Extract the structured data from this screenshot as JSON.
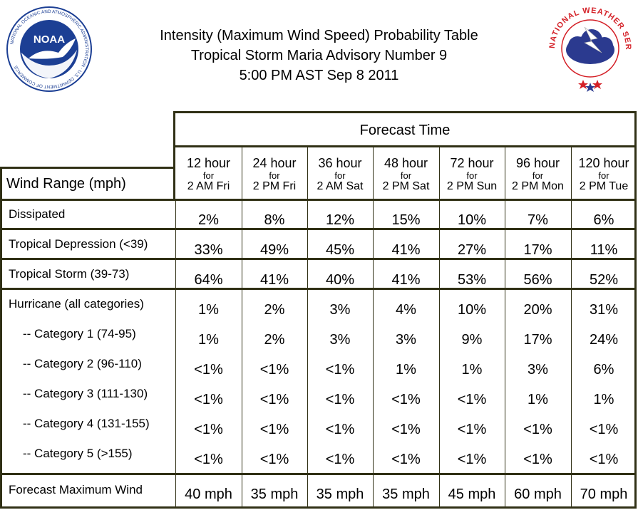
{
  "title_lines": [
    "Intensity (Maximum Wind Speed) Probability Table",
    "Tropical Storm Maria Advisory Number 9",
    "5:00 PM AST Sep 8 2011"
  ],
  "logos": {
    "noaa_text": "NOAA",
    "noaa_ring": "NATIONAL OCEANIC AND ATMOSPHERIC ADMINISTRATION · U.S. DEPARTMENT OF COMMERCE",
    "nws_ring": "NATIONAL WEATHER SERVICE"
  },
  "header": {
    "forecast_time": "Forecast Time",
    "wind_range": "Wind Range (mph)",
    "columns": [
      {
        "hour": "12 hour",
        "for": "for",
        "time": "2 AM Fri"
      },
      {
        "hour": "24 hour",
        "for": "for",
        "time": "2 PM Fri"
      },
      {
        "hour": "36 hour",
        "for": "for",
        "time": "2 AM Sat"
      },
      {
        "hour": "48 hour",
        "for": "for",
        "time": "2 PM Sat"
      },
      {
        "hour": "72 hour",
        "for": "for",
        "time": "2 PM Sun"
      },
      {
        "hour": "96 hour",
        "for": "for",
        "time": "2 PM Mon"
      },
      {
        "hour": "120 hour",
        "for": "for",
        "time": "2 PM Tue"
      }
    ]
  },
  "rows": [
    {
      "label": "Dissipated",
      "values": [
        "2%",
        "8%",
        "12%",
        "15%",
        "10%",
        "7%",
        "6%"
      ]
    },
    {
      "label": "Tropical Depression (<39)",
      "values": [
        "33%",
        "49%",
        "45%",
        "41%",
        "27%",
        "17%",
        "11%"
      ]
    },
    {
      "label": "Tropical Storm (39-73)",
      "values": [
        "64%",
        "41%",
        "40%",
        "41%",
        "53%",
        "56%",
        "52%"
      ]
    },
    {
      "label": "Hurricane (all categories)",
      "values": [
        "1%",
        "2%",
        "3%",
        "4%",
        "10%",
        "20%",
        "31%"
      ]
    },
    {
      "label": "-- Category 1 (74-95)",
      "values": [
        "1%",
        "2%",
        "3%",
        "3%",
        "9%",
        "17%",
        "24%"
      ]
    },
    {
      "label": "-- Category 2 (96-110)",
      "values": [
        "<1%",
        "<1%",
        "<1%",
        "1%",
        "1%",
        "3%",
        "6%"
      ]
    },
    {
      "label": "-- Category 3 (111-130)",
      "values": [
        "<1%",
        "<1%",
        "<1%",
        "<1%",
        "<1%",
        "1%",
        "1%"
      ]
    },
    {
      "label": "-- Category 4 (131-155)",
      "values": [
        "<1%",
        "<1%",
        "<1%",
        "<1%",
        "<1%",
        "<1%",
        "<1%"
      ]
    },
    {
      "label": "-- Category 5 (>155)",
      "values": [
        "<1%",
        "<1%",
        "<1%",
        "<1%",
        "<1%",
        "<1%",
        "<1%"
      ]
    }
  ],
  "footer": {
    "label": "Forecast Maximum Wind",
    "values": [
      "40 mph",
      "35 mph",
      "35 mph",
      "35 mph",
      "45 mph",
      "60 mph",
      "70 mph"
    ]
  },
  "colors": {
    "border": "#303015",
    "noaa_blue": "#1c3f94",
    "nws_red": "#d42027",
    "nws_cloud": "#2b3a8f"
  }
}
